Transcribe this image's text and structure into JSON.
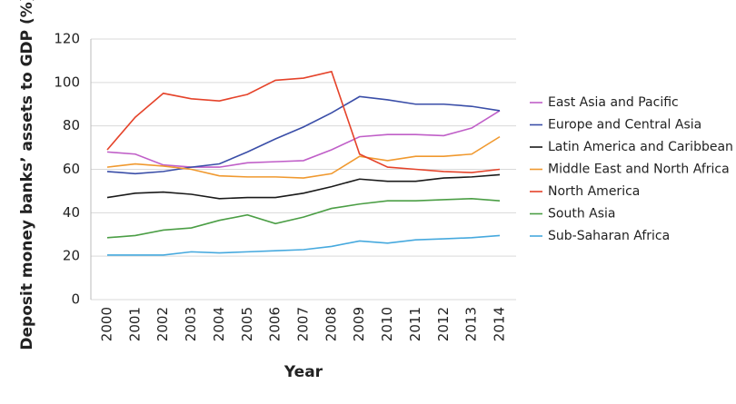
{
  "chart_data": {
    "type": "line",
    "y_label": "Deposit money banks’ assets to GDP (%)",
    "x_label": "Year",
    "categories": [
      "2000",
      "2001",
      "2002",
      "2003",
      "2004",
      "2005",
      "2006",
      "2007",
      "2008",
      "2009",
      "2010",
      "2011",
      "2012",
      "2013",
      "2014"
    ],
    "ylim": [
      0,
      120
    ],
    "yticks": [
      0,
      20,
      40,
      60,
      80,
      100,
      120
    ],
    "grid": true,
    "legend": "right",
    "series": [
      {
        "name": "East Asia and Pacific",
        "color": "#c05fc8",
        "values": [
          68,
          67,
          62,
          61,
          61,
          63,
          63.5,
          64,
          69,
          75,
          76,
          76,
          75.5,
          79,
          87
        ]
      },
      {
        "name": "Europe and Central Asia",
        "color": "#3a4ea8",
        "values": [
          59,
          58,
          59,
          61,
          62.5,
          68,
          74,
          79.5,
          86,
          93.5,
          92,
          90,
          90,
          89,
          87
        ]
      },
      {
        "name": "Latin America and Caribbean",
        "color": "#1a1a1a",
        "values": [
          47,
          49,
          49.5,
          48.5,
          46.5,
          47,
          47,
          49,
          52,
          55.5,
          54.5,
          54.5,
          56,
          56.5,
          57.5
        ]
      },
      {
        "name": "Middle East and North Africa",
        "color": "#f0992f",
        "values": [
          61,
          62.5,
          61.5,
          60,
          57,
          56.5,
          56.5,
          56,
          58,
          66,
          64,
          66,
          66,
          67,
          75
        ]
      },
      {
        "name": "North America",
        "color": "#e5432a",
        "values": [
          69,
          84,
          95,
          92.5,
          91.5,
          94.5,
          101,
          102,
          105,
          67,
          61,
          60,
          59,
          58.5,
          60
        ]
      },
      {
        "name": "South Asia",
        "color": "#4b9e45",
        "values": [
          28.5,
          29.5,
          32,
          33,
          36.5,
          39,
          35,
          38,
          42,
          44,
          45.5,
          45.5,
          46,
          46.5,
          45.5
        ]
      },
      {
        "name": "Sub-Saharan Africa",
        "color": "#46a9de",
        "values": [
          20.5,
          20.5,
          20.5,
          22,
          21.5,
          22,
          22.5,
          23,
          24.5,
          27,
          26,
          27.5,
          28,
          28.5,
          29.5
        ]
      }
    ]
  }
}
